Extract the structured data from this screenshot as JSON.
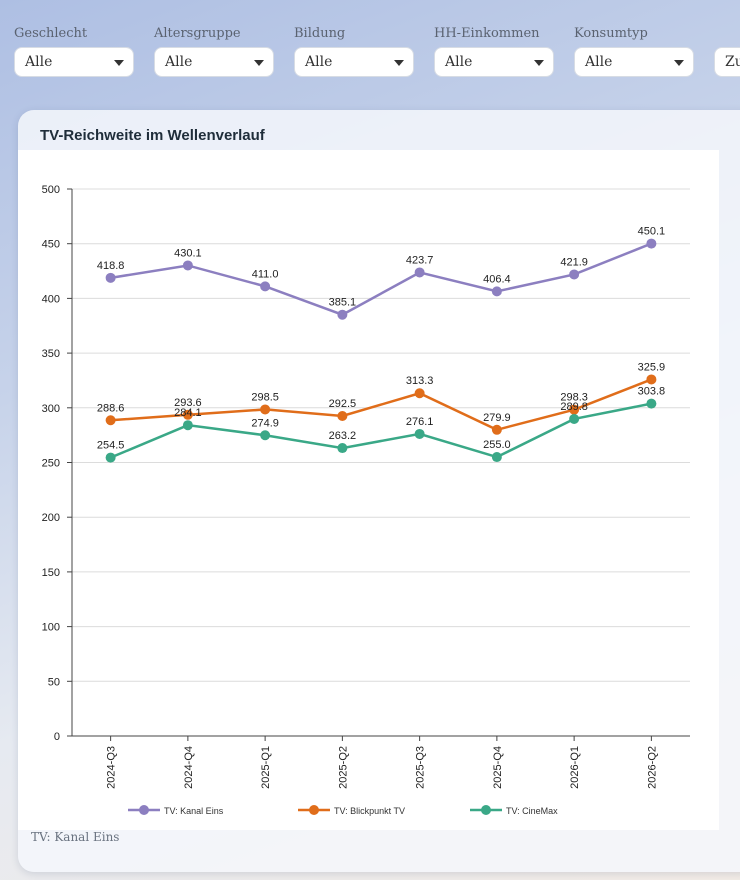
{
  "filters": [
    {
      "label": "Geschlecht",
      "value": "Alle"
    },
    {
      "label": "Altersgruppe",
      "value": "Alle"
    },
    {
      "label": "Bildung",
      "value": "Alle"
    },
    {
      "label": "HH-Einkommen",
      "value": "Alle"
    },
    {
      "label": "Konsumtyp",
      "value": "Alle"
    },
    {
      "label": "",
      "value": "Zu"
    }
  ],
  "card": {
    "title": "TV-Reichweite im Wellenverlauf",
    "caption": "TV: Kanal Eins"
  },
  "chart_data": {
    "type": "line",
    "categories": [
      "2024-Q3",
      "2024-Q4",
      "2025-Q1",
      "2025-Q2",
      "2025-Q3",
      "2025-Q4",
      "2026-Q1",
      "2026-Q2"
    ],
    "series": [
      {
        "name": "TV: Kanal Eins",
        "color": "#8c7fc0",
        "values": [
          418.8,
          430.1,
          411.0,
          385.1,
          423.7,
          406.4,
          421.9,
          450.1
        ]
      },
      {
        "name": "TV: Blickpunkt TV",
        "color": "#e06d1a",
        "values": [
          288.6,
          293.6,
          298.5,
          292.5,
          313.3,
          279.9,
          298.3,
          325.9
        ]
      },
      {
        "name": "TV: CineMax",
        "color": "#3aa887",
        "values": [
          254.5,
          284.1,
          274.9,
          263.2,
          276.1,
          255.0,
          289.8,
          303.8
        ]
      }
    ],
    "yticks": [
      "0",
      "50",
      "100",
      "150",
      "200",
      "250",
      "300",
      "350",
      "400",
      "450",
      "500"
    ],
    "ylim": [
      0,
      500
    ],
    "grid": true,
    "legend": "bottom"
  }
}
